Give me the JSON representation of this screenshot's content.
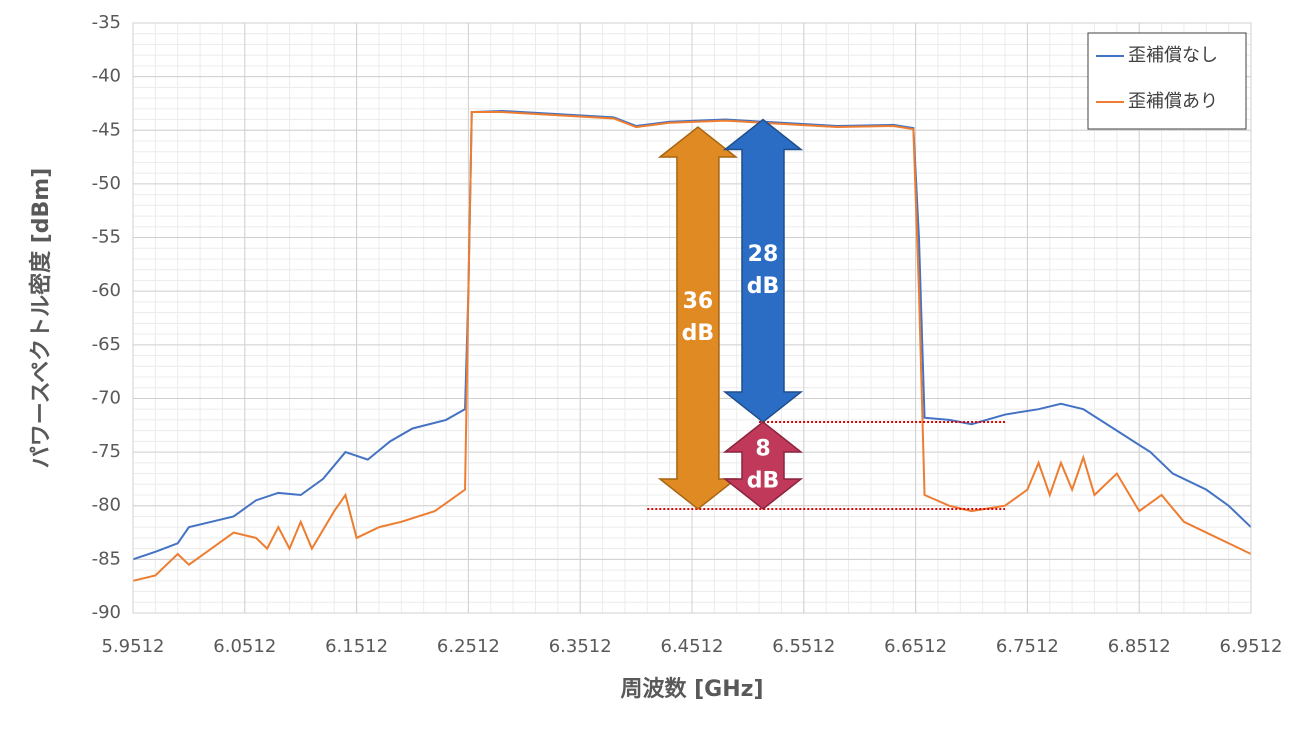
{
  "chart_data": {
    "type": "line",
    "x_label": "周波数 [GHz]",
    "y_label": "パワースペクトル密度 [dBm]",
    "xlim": [
      5.9512,
      6.9512
    ],
    "xticks": [
      5.9512,
      6.0512,
      6.1512,
      6.2512,
      6.3512,
      6.4512,
      6.5512,
      6.6512,
      6.7512,
      6.8512,
      6.9512
    ],
    "ylim": [
      -90,
      -35
    ],
    "yticks": [
      -35,
      -40,
      -45,
      -50,
      -55,
      -60,
      -65,
      -70,
      -75,
      -80,
      -85,
      -90
    ],
    "grid": true,
    "minor_grid": true,
    "legend_position": "top-right",
    "series": [
      {
        "name": "歪補償なし",
        "color": "#4472c4",
        "x": [
          5.9512,
          5.9712,
          5.9912,
          6.0012,
          6.0212,
          6.0412,
          6.0612,
          6.0812,
          6.1012,
          6.1212,
          6.1412,
          6.1612,
          6.1812,
          6.2012,
          6.2312,
          6.2482,
          6.2512,
          6.2542,
          6.2812,
          6.3312,
          6.3812,
          6.4012,
          6.4312,
          6.4812,
          6.5312,
          6.5812,
          6.6312,
          6.6492,
          6.6542,
          6.6592,
          6.6812,
          6.7012,
          6.7312,
          6.7612,
          6.7812,
          6.8012,
          6.8312,
          6.8612,
          6.8812,
          6.9112,
          6.9312,
          6.9512
        ],
        "values": [
          -85,
          -84.3,
          -83.5,
          -82,
          -81.5,
          -81,
          -79.5,
          -78.8,
          -79,
          -77.5,
          -75,
          -75.7,
          -74,
          -72.8,
          -72,
          -71,
          -60,
          -43.3,
          -43.2,
          -43.5,
          -43.8,
          -44.6,
          -44.2,
          -44,
          -44.3,
          -44.6,
          -44.5,
          -44.8,
          -55,
          -71.8,
          -72,
          -72.4,
          -71.5,
          -71,
          -70.5,
          -71,
          -73,
          -75,
          -77,
          -78.5,
          -80,
          -82
        ]
      },
      {
        "name": "歪補償あり",
        "color": "#ed7d31",
        "x": [
          5.9512,
          5.9712,
          5.9912,
          6.0012,
          6.0212,
          6.0412,
          6.0612,
          6.0712,
          6.0812,
          6.0912,
          6.1012,
          6.1112,
          6.1312,
          6.1412,
          6.1512,
          6.1712,
          6.1912,
          6.2212,
          6.2482,
          6.2512,
          6.2542,
          6.2812,
          6.3312,
          6.3812,
          6.4012,
          6.4312,
          6.4812,
          6.5312,
          6.5812,
          6.6312,
          6.6492,
          6.6542,
          6.6592,
          6.6812,
          6.7012,
          6.7312,
          6.7512,
          6.7612,
          6.7712,
          6.7812,
          6.7912,
          6.8012,
          6.8112,
          6.8312,
          6.8512,
          6.8712,
          6.8912,
          6.9112,
          6.9312,
          6.9512
        ],
        "values": [
          -87,
          -86.5,
          -84.5,
          -85.5,
          -84,
          -82.5,
          -83,
          -84,
          -82,
          -84,
          -81.5,
          -84,
          -80.5,
          -79,
          -83,
          -82,
          -81.5,
          -80.5,
          -78.5,
          -60,
          -43.3,
          -43.3,
          -43.6,
          -43.9,
          -44.7,
          -44.3,
          -44.1,
          -44.4,
          -44.7,
          -44.6,
          -44.9,
          -60,
          -79,
          -80,
          -80.5,
          -80,
          -78.5,
          -76,
          -79,
          -76,
          -78.5,
          -75.5,
          -79,
          -77,
          -80.5,
          -79,
          -81.5,
          -82.5,
          -83.5,
          -84.5
        ]
      }
    ],
    "reference_lines": [
      {
        "y": -72.2,
        "x": [
          6.5112,
          6.7312
        ],
        "color": "#e00000"
      },
      {
        "y": -80.3,
        "x": [
          6.4112,
          6.7312
        ],
        "color": "#e00000"
      }
    ],
    "annotations": [
      {
        "text_lines": [
          "36",
          "dB"
        ],
        "x": 6.4565,
        "from": -44.7,
        "to": -80.3,
        "color": "#e08a24",
        "border": "#a86512"
      },
      {
        "text_lines": [
          "28",
          "dB"
        ],
        "x": 6.5147,
        "from": -44.0,
        "to": -72.2,
        "color": "#2b6cc4",
        "border": "#1f4e8a"
      },
      {
        "text_lines": [
          "8",
          "dB"
        ],
        "x": 6.5147,
        "from": -72.2,
        "to": -80.3,
        "color": "#c0395a",
        "border": "#8a2340"
      }
    ]
  }
}
